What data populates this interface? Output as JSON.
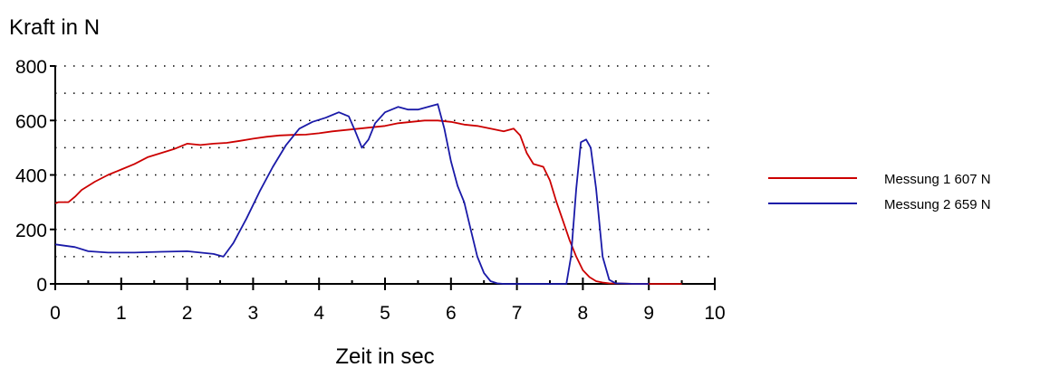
{
  "chart_data": {
    "type": "line",
    "title": "",
    "ylabel": "Kraft in N",
    "xlabel": "Zeit in sec",
    "xlim": [
      0,
      10
    ],
    "ylim": [
      0,
      800
    ],
    "x_ticks": [
      0,
      1,
      2,
      3,
      4,
      5,
      6,
      7,
      8,
      9,
      10
    ],
    "y_ticks": [
      0,
      200,
      400,
      600,
      800
    ],
    "grid": "horizontal dotted, every 100 N",
    "legend_position": "right",
    "series": [
      {
        "name": "Messung 1 607 N",
        "color": "#cc0000",
        "x": [
          0,
          0.05,
          0.2,
          0.3,
          0.4,
          0.6,
          0.8,
          1.0,
          1.2,
          1.4,
          1.6,
          1.8,
          2.0,
          2.2,
          2.4,
          2.6,
          2.8,
          3.0,
          3.2,
          3.4,
          3.6,
          3.8,
          4.0,
          4.2,
          4.4,
          4.6,
          4.8,
          5.0,
          5.2,
          5.4,
          5.6,
          5.8,
          6.0,
          6.2,
          6.4,
          6.6,
          6.8,
          6.95,
          7.05,
          7.15,
          7.25,
          7.4,
          7.5,
          7.6,
          7.7,
          7.8,
          7.9,
          8.0,
          8.1,
          8.2,
          8.3,
          8.4,
          8.6,
          8.8,
          9.0,
          9.2,
          9.4,
          9.5
        ],
        "y": [
          295,
          300,
          300,
          320,
          345,
          375,
          400,
          420,
          440,
          465,
          480,
          495,
          515,
          510,
          515,
          518,
          525,
          533,
          540,
          545,
          547,
          548,
          553,
          560,
          565,
          570,
          575,
          580,
          590,
          595,
          600,
          600,
          595,
          585,
          580,
          570,
          560,
          570,
          545,
          480,
          440,
          430,
          380,
          300,
          230,
          160,
          100,
          50,
          25,
          10,
          5,
          2,
          1,
          0,
          0,
          0,
          0,
          0
        ]
      },
      {
        "name": "Messung 2 659 N",
        "color": "#1a1aa8",
        "x": [
          0,
          0.3,
          0.5,
          0.8,
          1.2,
          1.6,
          2.0,
          2.4,
          2.55,
          2.7,
          2.9,
          3.1,
          3.3,
          3.5,
          3.7,
          3.9,
          4.1,
          4.3,
          4.45,
          4.55,
          4.65,
          4.75,
          4.85,
          5.0,
          5.2,
          5.35,
          5.5,
          5.65,
          5.8,
          5.9,
          6.0,
          6.1,
          6.2,
          6.3,
          6.4,
          6.5,
          6.6,
          6.7,
          6.8,
          6.9,
          7.0,
          7.5,
          7.75,
          7.82,
          7.9,
          7.97,
          8.05,
          8.12,
          8.2,
          8.3,
          8.4,
          8.5,
          8.8,
          9.0
        ],
        "y": [
          145,
          135,
          120,
          115,
          115,
          118,
          120,
          110,
          100,
          150,
          240,
          340,
          430,
          510,
          570,
          595,
          610,
          630,
          615,
          560,
          500,
          530,
          590,
          630,
          650,
          640,
          640,
          650,
          660,
          570,
          450,
          360,
          300,
          200,
          100,
          40,
          10,
          2,
          0,
          0,
          0,
          0,
          0,
          100,
          350,
          520,
          530,
          500,
          350,
          100,
          15,
          2,
          0,
          0
        ]
      }
    ]
  }
}
